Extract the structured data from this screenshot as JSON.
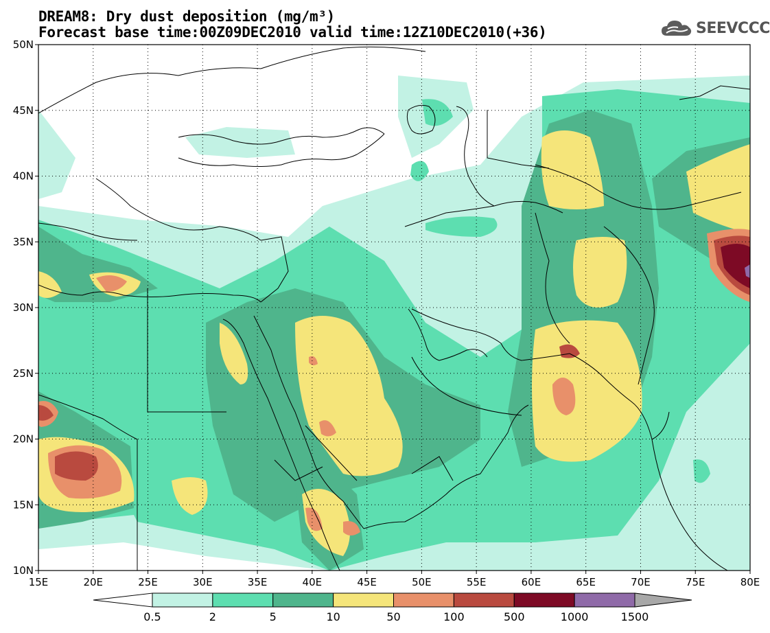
{
  "title": {
    "line1": "DREAM8: Dry dust deposition (mg/m³)",
    "line2": "Forecast base time:00Z09DEC2010 valid time:12Z10DEC2010(+36)"
  },
  "logo": {
    "text": "SEEVCCC",
    "icon": "cloud-icon",
    "color": "#555555"
  },
  "map": {
    "lon_range": [
      15,
      80
    ],
    "lat_range": [
      10,
      50
    ],
    "lon_ticks": [
      "15E",
      "20E",
      "25E",
      "30E",
      "35E",
      "40E",
      "45E",
      "50E",
      "55E",
      "60E",
      "65E",
      "70E",
      "75E",
      "80E"
    ],
    "lat_ticks": [
      "10N",
      "15N",
      "20N",
      "25N",
      "30N",
      "35N",
      "40N",
      "45N",
      "50N"
    ],
    "grid": "dotted"
  },
  "colorbar": {
    "labels": [
      "0.5",
      "2",
      "5",
      "10",
      "50",
      "100",
      "500",
      "1000",
      "1500"
    ],
    "colors": [
      "#c2f2e4",
      "#5ddeb0",
      "#4fb58c",
      "#f5e57a",
      "#e8906a",
      "#b94a3f",
      "#7d0a25",
      "#8f6aa8"
    ],
    "under_color": "#ffffff",
    "over_color": "#a8a8a8"
  }
}
